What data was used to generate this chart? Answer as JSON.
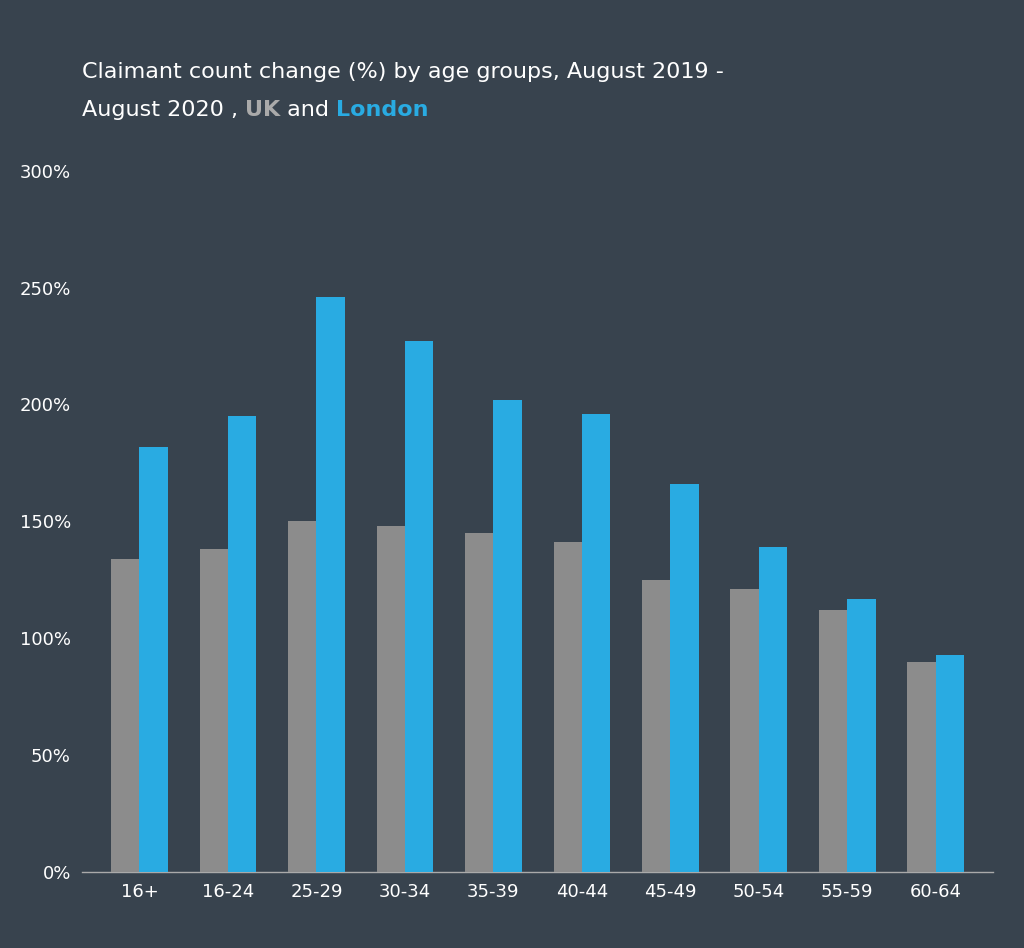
{
  "categories": [
    "16+",
    "16-24",
    "25-29",
    "30-34",
    "35-39",
    "40-44",
    "45-49",
    "50-54",
    "55-59",
    "60-64"
  ],
  "uk_values": [
    134,
    138,
    150,
    148,
    145,
    141,
    125,
    121,
    112,
    90
  ],
  "london_values": [
    182,
    195,
    246,
    227,
    202,
    196,
    166,
    139,
    117,
    93
  ],
  "uk_color": "#8c8c8c",
  "london_color": "#29abe2",
  "background_color": "#38434e",
  "ylim": [
    0,
    300
  ],
  "yticks": [
    0,
    50,
    100,
    150,
    200,
    250,
    300
  ],
  "ytick_labels": [
    "0%",
    "50%",
    "100%",
    "150%",
    "200%",
    "250%",
    "300%"
  ],
  "bar_width": 0.32,
  "title_fontsize": 16,
  "tick_fontsize": 13,
  "text_color": "#ffffff",
  "uk_text_color": "#aaaaaa",
  "london_text_color": "#29abe2",
  "axis_color": "#aaaaaa",
  "title_line1": "Claimant count change (%) by age groups, August 2019 -",
  "title_line2_pre": "August 2020 , ",
  "title_line2_uk": "UK",
  "title_line2_mid": " and ",
  "title_line2_london": "London"
}
